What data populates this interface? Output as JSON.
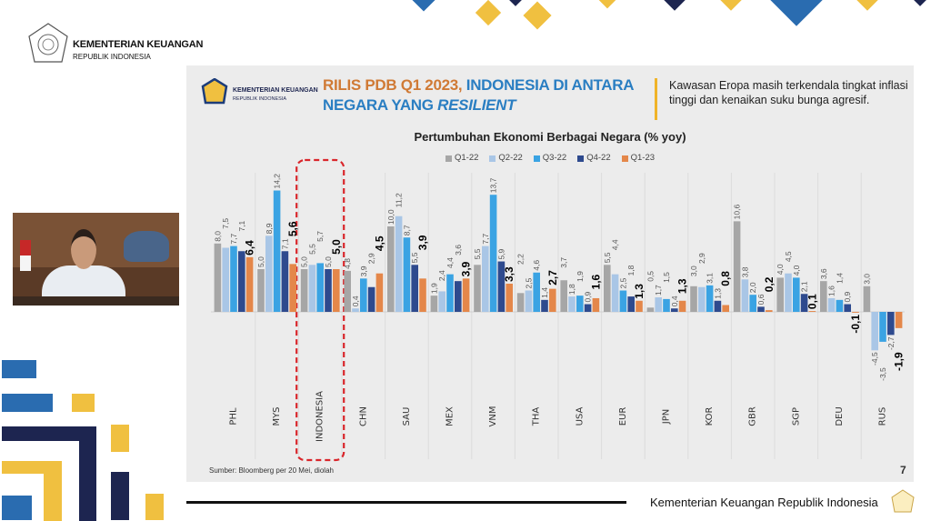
{
  "header": {
    "org_name": "KEMENTERIAN KEUANGAN",
    "org_sub": "REPUBLIK INDONESIA"
  },
  "slide": {
    "logo_name": "KEMENTERIAN KEUANGAN",
    "logo_sub": "REPUBLIK INDONESIA",
    "title_part1": "RILIS PDB Q1 2023, ",
    "title_part2": "INDONESIA DI ANTARA",
    "title_line2a": "NEGARA YANG ",
    "title_line2b": "RESILIENT",
    "note": "Kawasan Eropa masih terkendala tingkat inflasi tinggi dan kenaikan suku bunga agresif.",
    "source": "Sumber: Bloomberg per 20 Mei, diolah",
    "page_number": "7"
  },
  "footer": {
    "text": "Kementerian Keuangan Republik Indonesia"
  },
  "colors": {
    "q1_22": "#a6a6a6",
    "q2_22": "#a9c6e6",
    "q3_22": "#3aa3e3",
    "q4_22": "#2e4a8e",
    "q1_23": "#e4874a",
    "highlight": "#d9262b"
  },
  "chart_data": {
    "type": "bar",
    "title": "Pertumbuhan Ekonomi Berbagai Negara (% yoy)",
    "xlabel": "",
    "ylabel": "",
    "legend": "top-center",
    "highlight_category": "INDONESIA",
    "categories": [
      "PHL",
      "MYS",
      "INDONESIA",
      "CHN",
      "SAU",
      "MEX",
      "VNM",
      "THA",
      "USA",
      "EUR",
      "JPN",
      "KOR",
      "GBR",
      "SGP",
      "DEU",
      "RUS"
    ],
    "series": [
      {
        "name": "Q1-22",
        "values": [
          8.0,
          5.0,
          5.0,
          4.8,
          10.0,
          1.9,
          5.5,
          2.2,
          3.7,
          5.5,
          0.5,
          3.0,
          10.6,
          4.0,
          3.6,
          3.0
        ]
      },
      {
        "name": "Q2-22",
        "values": [
          7.5,
          8.9,
          5.5,
          0.4,
          11.2,
          2.4,
          7.7,
          2.5,
          1.8,
          4.4,
          1.7,
          2.9,
          3.8,
          4.5,
          1.6,
          -4.5
        ]
      },
      {
        "name": "Q3-22",
        "values": [
          7.7,
          14.2,
          5.7,
          3.9,
          8.7,
          4.4,
          13.7,
          4.6,
          1.9,
          2.5,
          1.5,
          3.1,
          2.0,
          4.0,
          1.4,
          -3.5
        ]
      },
      {
        "name": "Q4-22",
        "values": [
          7.1,
          7.1,
          5.0,
          2.9,
          5.5,
          3.6,
          5.9,
          1.4,
          0.9,
          1.8,
          0.4,
          1.3,
          0.6,
          2.1,
          0.9,
          -2.7
        ]
      },
      {
        "name": "Q1-23",
        "values": [
          6.4,
          5.6,
          5.0,
          4.5,
          3.9,
          3.9,
          3.3,
          2.7,
          1.6,
          1.3,
          1.3,
          0.8,
          0.2,
          0.1,
          -0.1,
          -1.9
        ]
      }
    ]
  }
}
